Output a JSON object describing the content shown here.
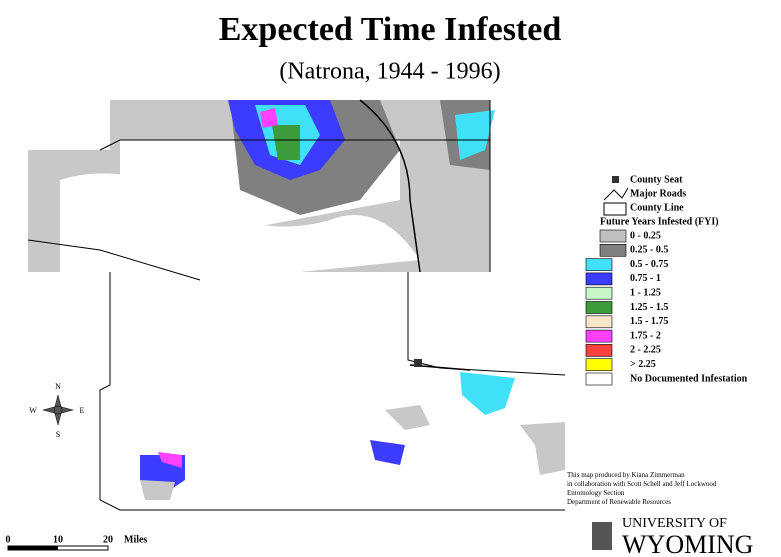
{
  "title": "Expected Time Infested",
  "subtitle": "(Natrona, 1944 - 1996)",
  "legend": {
    "symbols": [
      "County Seat",
      "Major Roads",
      "County Line"
    ],
    "heading": "Future Years Infested (FYI)",
    "items": [
      {
        "label": "0 - 0.25",
        "color": "#c0c0c0"
      },
      {
        "label": "0.25 - 0.5",
        "color": "#808080"
      },
      {
        "label": "0.5 - 0.75",
        "color": "#40e0f8"
      },
      {
        "label": "0.75 - 1",
        "color": "#3c3cff"
      },
      {
        "label": "1 - 1.25",
        "color": "#c8f8c8"
      },
      {
        "label": "1.25 - 1.5",
        "color": "#3c9c3c"
      },
      {
        "label": "1.5 - 1.75",
        "color": "#f8e4c8"
      },
      {
        "label": "1.75 - 2",
        "color": "#ff40ff"
      },
      {
        "label": "2 - 2.25",
        "color": "#ff4040"
      },
      {
        "label": "> 2.25",
        "color": "#ffff00"
      },
      {
        "label": "No Documented Infestation",
        "color": "#ffffff"
      }
    ]
  },
  "compass": {
    "n": "N",
    "s": "S",
    "e": "E",
    "w": "W"
  },
  "scale": {
    "labels": [
      "0",
      "10",
      "20"
    ],
    "unit": "Miles"
  },
  "credits": [
    "This map produced by Kiana Zimmerman",
    "in collaboration with Scott Schell and Jeff Lockwood",
    "Entomology Section",
    "Department of Renewable Resources"
  ],
  "logo": {
    "line1": "UNIVERSITY OF",
    "line2": "WYOMING"
  }
}
